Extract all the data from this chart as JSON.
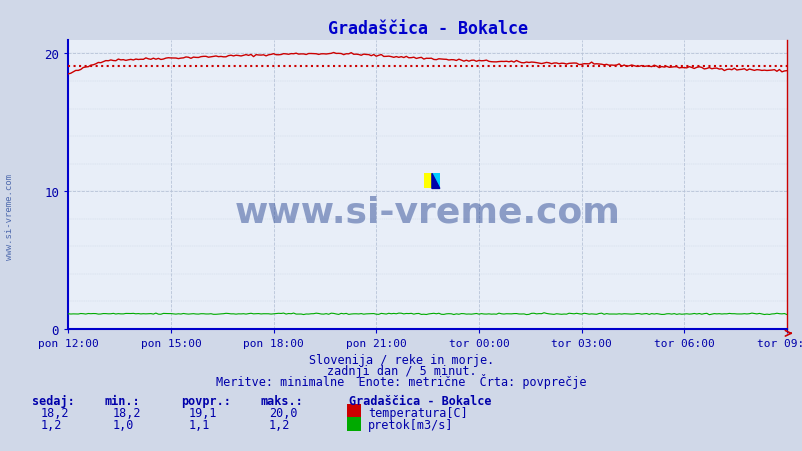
{
  "title": "Gradaščica - Bokalce",
  "bg_color": "#d0d8e8",
  "plot_bg_color": "#e8eef8",
  "grid_color": "#b8c4d8",
  "ylim": [
    0,
    21
  ],
  "yticks": [
    0,
    10,
    20
  ],
  "xlabel_ticks": [
    "pon 12:00",
    "pon 15:00",
    "pon 18:00",
    "pon 21:00",
    "tor 00:00",
    "tor 03:00",
    "tor 06:00",
    "tor 09:00"
  ],
  "n_points": 288,
  "temp_avg": 19.1,
  "temp_color": "#cc0000",
  "flow_color": "#00aa00",
  "title_color": "#0000cc",
  "tick_color": "#0000aa",
  "text_color": "#0000aa",
  "watermark_color": "#1a3a8a",
  "subtitle1": "Slovenija / reke in morje.",
  "subtitle2": "zadnji dan / 5 minut.",
  "subtitle3": "Meritve: minimalne  Enote: metrične  Črta: povprečje",
  "legend_title": "Gradaščica - Bokalce",
  "legend_temp": "temperatura[C]",
  "legend_flow": "pretok[m3/s]",
  "left_watermark": "www.si-vreme.com",
  "stat_headers": [
    "sedaj:",
    "min.:",
    "povpr.:",
    "maks.:"
  ],
  "temp_stats": [
    "18,2",
    "18,2",
    "19,1",
    "20,0"
  ],
  "flow_stats": [
    "1,2",
    "1,0",
    "1,1",
    "1,2"
  ]
}
